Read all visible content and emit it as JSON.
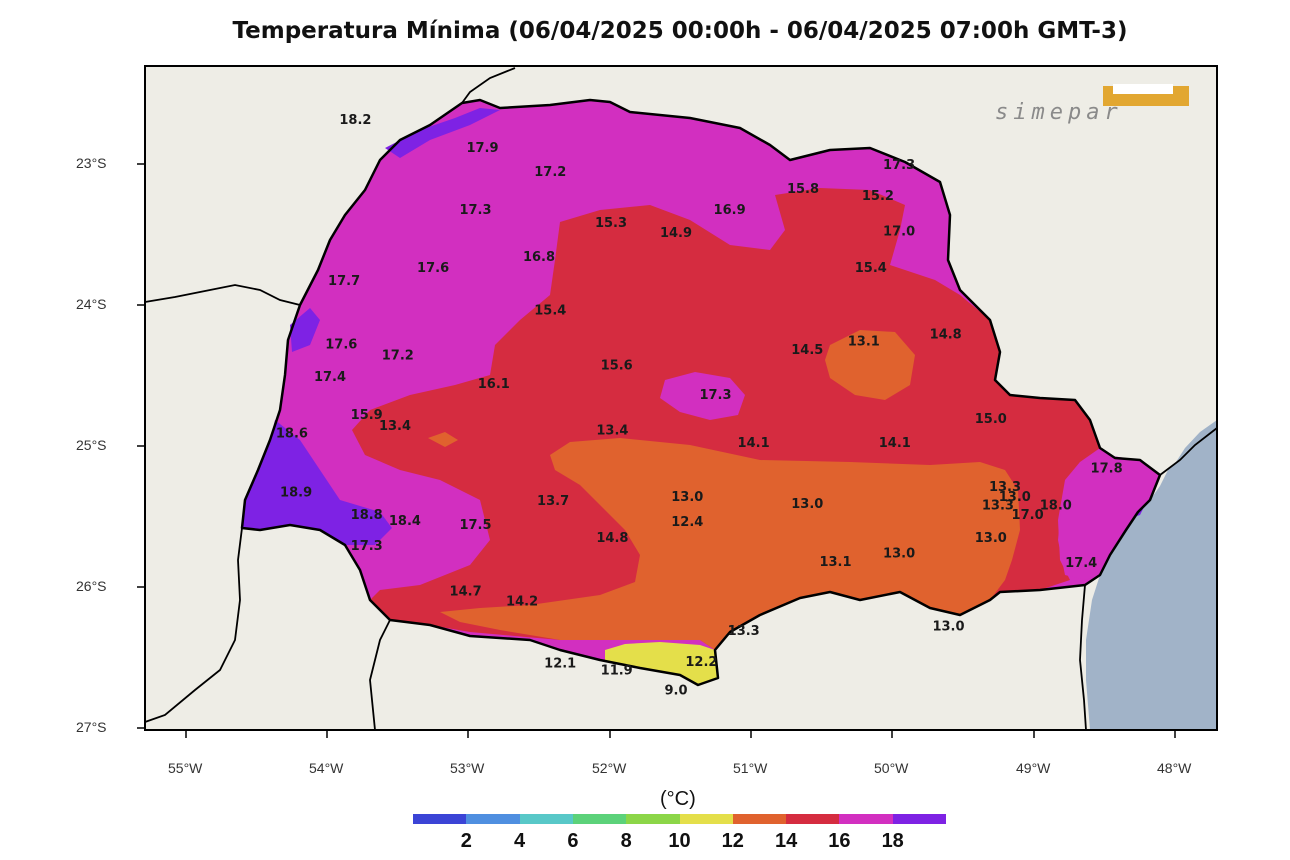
{
  "title": "Temperatura Mínima (06/04/2025 00:00h - 06/04/2025 07:00h GMT-3)",
  "logo_text": "simepar",
  "colors": {
    "land": "#eeede6",
    "ocean": "#a1b3c8",
    "bins": [
      "#3b44d6",
      "#4f8fe0",
      "#58c8c8",
      "#5cd27a",
      "#8cd648",
      "#e4df4a",
      "#e0622e",
      "#d52c40",
      "#d22fc0",
      "#7e22e4"
    ]
  },
  "axes": {
    "lon_labels": [
      "55°W",
      "54°W",
      "53°W",
      "52°W",
      "51°W",
      "50°W",
      "49°W",
      "48°W"
    ],
    "lat_labels": [
      "23°S",
      "24°S",
      "25°S",
      "26°S",
      "27°S"
    ],
    "lon_range": [
      -55.3,
      -47.7
    ],
    "lat_range": [
      -22.7,
      -27.0
    ]
  },
  "colorbar": {
    "unit": "(°C)",
    "labels": [
      "2",
      "4",
      "6",
      "8",
      "10",
      "12",
      "14",
      "16",
      "18"
    ]
  },
  "stations": [
    {
      "v": "18.2",
      "lon": -53.8,
      "lat": -22.68
    },
    {
      "v": "17.9",
      "lon": -52.9,
      "lat": -22.88
    },
    {
      "v": "17.2",
      "lon": -52.42,
      "lat": -23.05
    },
    {
      "v": "17.3",
      "lon": -52.95,
      "lat": -23.32
    },
    {
      "v": "16.8",
      "lon": -52.5,
      "lat": -23.65
    },
    {
      "v": "17.6",
      "lon": -53.25,
      "lat": -23.73
    },
    {
      "v": "17.7",
      "lon": -53.88,
      "lat": -23.82
    },
    {
      "v": "15.3",
      "lon": -51.99,
      "lat": -23.41
    },
    {
      "v": "14.9",
      "lon": -51.53,
      "lat": -23.48
    },
    {
      "v": "16.9",
      "lon": -51.15,
      "lat": -23.32
    },
    {
      "v": "15.8",
      "lon": -50.63,
      "lat": -23.17
    },
    {
      "v": "15.2",
      "lon": -50.1,
      "lat": -23.22
    },
    {
      "v": "17.3",
      "lon": -49.95,
      "lat": -23.0
    },
    {
      "v": "17.0",
      "lon": -49.95,
      "lat": -23.47
    },
    {
      "v": "15.4",
      "lon": -50.15,
      "lat": -23.73
    },
    {
      "v": "15.4",
      "lon": -52.42,
      "lat": -24.03
    },
    {
      "v": "17.6",
      "lon": -53.9,
      "lat": -24.27
    },
    {
      "v": "17.2",
      "lon": -53.5,
      "lat": -24.35
    },
    {
      "v": "17.4",
      "lon": -53.98,
      "lat": -24.5
    },
    {
      "v": "16.1",
      "lon": -52.82,
      "lat": -24.55
    },
    {
      "v": "15.6",
      "lon": -51.95,
      "lat": -24.42
    },
    {
      "v": "17.3",
      "lon": -51.25,
      "lat": -24.63
    },
    {
      "v": "14.5",
      "lon": -50.6,
      "lat": -24.31
    },
    {
      "v": "13.1",
      "lon": -50.2,
      "lat": -24.25
    },
    {
      "v": "14.8",
      "lon": -49.62,
      "lat": -24.2
    },
    {
      "v": "15.9",
      "lon": -53.72,
      "lat": -24.77
    },
    {
      "v": "13.4",
      "lon": -53.52,
      "lat": -24.85
    },
    {
      "v": "18.6",
      "lon": -54.25,
      "lat": -24.9
    },
    {
      "v": "13.4",
      "lon": -51.98,
      "lat": -24.88
    },
    {
      "v": "14.1",
      "lon": -50.98,
      "lat": -24.97
    },
    {
      "v": "14.1",
      "lon": -49.98,
      "lat": -24.97
    },
    {
      "v": "15.0",
      "lon": -49.3,
      "lat": -24.8
    },
    {
      "v": "17.8",
      "lon": -48.48,
      "lat": -25.15
    },
    {
      "v": "18.9",
      "lon": -54.22,
      "lat": -25.32
    },
    {
      "v": "13.7",
      "lon": -52.4,
      "lat": -25.38
    },
    {
      "v": "13.0",
      "lon": -51.45,
      "lat": -25.35
    },
    {
      "v": "13.0",
      "lon": -50.6,
      "lat": -25.4
    },
    {
      "v": "13.3",
      "lon": -49.2,
      "lat": -25.28
    },
    {
      "v": "13.0",
      "lon": -49.13,
      "lat": -25.35
    },
    {
      "v": "13.3",
      "lon": -49.25,
      "lat": -25.41
    },
    {
      "v": "18.0",
      "lon": -48.84,
      "lat": -25.41
    },
    {
      "v": "18.8",
      "lon": -53.72,
      "lat": -25.48
    },
    {
      "v": "18.4",
      "lon": -53.45,
      "lat": -25.52
    },
    {
      "v": "17.5",
      "lon": -52.95,
      "lat": -25.55
    },
    {
      "v": "17.0",
      "lon": -49.04,
      "lat": -25.48
    },
    {
      "v": "12.4",
      "lon": -51.45,
      "lat": -25.53
    },
    {
      "v": "14.8",
      "lon": -51.98,
      "lat": -25.64
    },
    {
      "v": "17.3",
      "lon": -53.72,
      "lat": -25.7
    },
    {
      "v": "13.0",
      "lon": -49.3,
      "lat": -25.64
    },
    {
      "v": "13.0",
      "lon": -49.95,
      "lat": -25.75
    },
    {
      "v": "13.1",
      "lon": -50.4,
      "lat": -25.81
    },
    {
      "v": "17.4",
      "lon": -48.66,
      "lat": -25.82
    },
    {
      "v": "14.7",
      "lon": -53.02,
      "lat": -26.02
    },
    {
      "v": "14.2",
      "lon": -52.62,
      "lat": -26.09
    },
    {
      "v": "13.3",
      "lon": -51.05,
      "lat": -26.3
    },
    {
      "v": "13.0",
      "lon": -49.6,
      "lat": -26.27
    },
    {
      "v": "12.1",
      "lon": -52.35,
      "lat": -26.53
    },
    {
      "v": "11.9",
      "lon": -51.95,
      "lat": -26.58
    },
    {
      "v": "12.2",
      "lon": -51.35,
      "lat": -26.52
    },
    {
      "v": "9.0",
      "lon": -51.53,
      "lat": -26.72
    }
  ]
}
